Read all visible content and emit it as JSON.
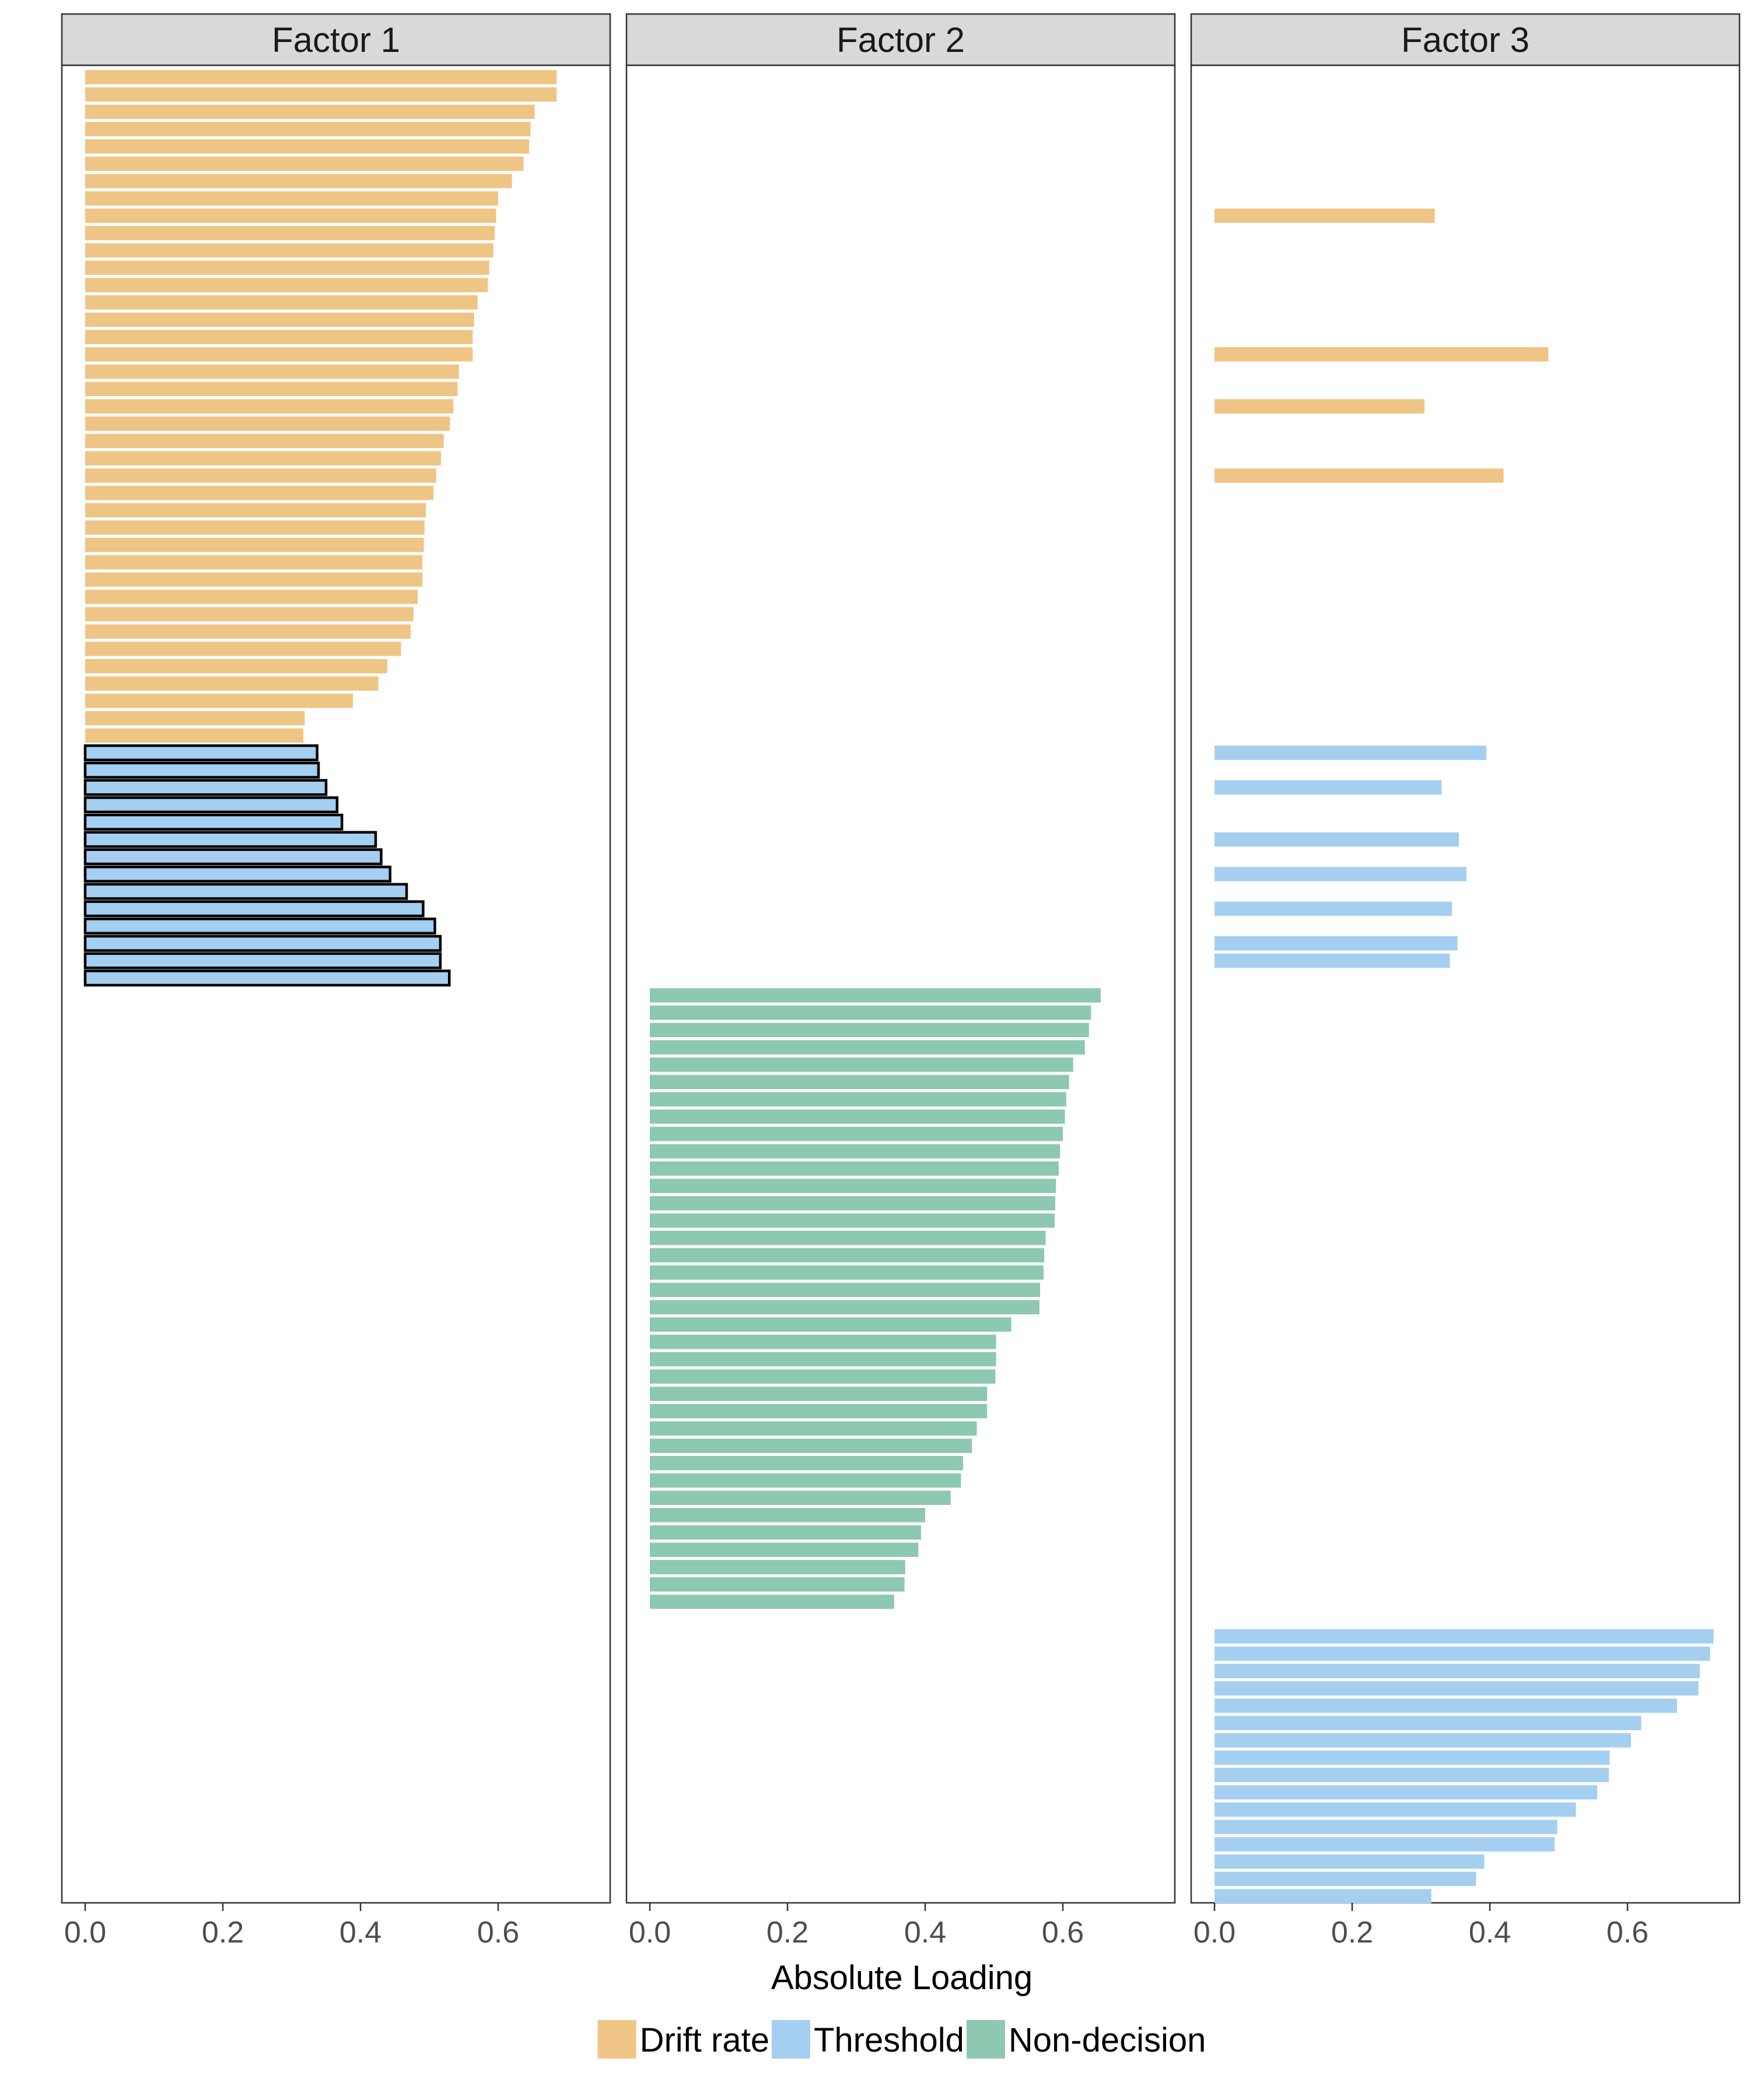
{
  "chart_data": {
    "type": "bar",
    "orientation": "horizontal",
    "xlabel": "Absolute Loading",
    "xlim": [
      0,
      0.74
    ],
    "x_ticks": [
      "0.0",
      "0.2",
      "0.4",
      "0.6"
    ],
    "x_tick_values": [
      0,
      0.2,
      0.4,
      0.6
    ],
    "grid": false,
    "legend_position": "bottom",
    "n_rows": 105,
    "legend": [
      {
        "label": "Drift rate",
        "color": "#EFC585"
      },
      {
        "label": "Threshold",
        "color": "#A5CFF0"
      },
      {
        "label": "Non-decision",
        "color": "#8DC8B0"
      }
    ],
    "colors": {
      "drift": "#EFC585",
      "threshold": "#A5CFF0",
      "nondecision": "#8DC8B0"
    },
    "facets": [
      {
        "title": "Factor 1",
        "bars": [
          {
            "row": 1,
            "value": 0.685,
            "type": "drift"
          },
          {
            "row": 2,
            "value": 0.685,
            "type": "drift"
          },
          {
            "row": 3,
            "value": 0.653,
            "type": "drift"
          },
          {
            "row": 4,
            "value": 0.647,
            "type": "drift"
          },
          {
            "row": 5,
            "value": 0.645,
            "type": "drift"
          },
          {
            "row": 6,
            "value": 0.637,
            "type": "drift"
          },
          {
            "row": 7,
            "value": 0.62,
            "type": "drift"
          },
          {
            "row": 8,
            "value": 0.6,
            "type": "drift"
          },
          {
            "row": 9,
            "value": 0.597,
            "type": "drift"
          },
          {
            "row": 10,
            "value": 0.595,
            "type": "drift"
          },
          {
            "row": 11,
            "value": 0.593,
            "type": "drift"
          },
          {
            "row": 12,
            "value": 0.587,
            "type": "drift"
          },
          {
            "row": 13,
            "value": 0.585,
            "type": "drift"
          },
          {
            "row": 14,
            "value": 0.57,
            "type": "drift"
          },
          {
            "row": 15,
            "value": 0.565,
            "type": "drift"
          },
          {
            "row": 16,
            "value": 0.563,
            "type": "drift"
          },
          {
            "row": 17,
            "value": 0.563,
            "type": "drift"
          },
          {
            "row": 18,
            "value": 0.543,
            "type": "drift"
          },
          {
            "row": 19,
            "value": 0.541,
            "type": "drift"
          },
          {
            "row": 20,
            "value": 0.535,
            "type": "drift"
          },
          {
            "row": 21,
            "value": 0.53,
            "type": "drift"
          },
          {
            "row": 22,
            "value": 0.521,
            "type": "drift"
          },
          {
            "row": 23,
            "value": 0.517,
            "type": "drift"
          },
          {
            "row": 24,
            "value": 0.51,
            "type": "drift"
          },
          {
            "row": 25,
            "value": 0.506,
            "type": "drift"
          },
          {
            "row": 26,
            "value": 0.495,
            "type": "drift"
          },
          {
            "row": 27,
            "value": 0.493,
            "type": "drift"
          },
          {
            "row": 28,
            "value": 0.492,
            "type": "drift"
          },
          {
            "row": 29,
            "value": 0.49,
            "type": "drift"
          },
          {
            "row": 30,
            "value": 0.49,
            "type": "drift"
          },
          {
            "row": 31,
            "value": 0.483,
            "type": "drift"
          },
          {
            "row": 32,
            "value": 0.477,
            "type": "drift"
          },
          {
            "row": 33,
            "value": 0.473,
            "type": "drift"
          },
          {
            "row": 34,
            "value": 0.459,
            "type": "drift"
          },
          {
            "row": 35,
            "value": 0.439,
            "type": "drift"
          },
          {
            "row": 36,
            "value": 0.426,
            "type": "drift"
          },
          {
            "row": 37,
            "value": 0.389,
            "type": "drift"
          },
          {
            "row": 38,
            "value": 0.319,
            "type": "drift"
          },
          {
            "row": 39,
            "value": 0.317,
            "type": "drift"
          },
          {
            "row": 40,
            "value": 0.337,
            "type": "threshold",
            "outlined": true
          },
          {
            "row": 41,
            "value": 0.339,
            "type": "threshold",
            "outlined": true
          },
          {
            "row": 42,
            "value": 0.35,
            "type": "threshold",
            "outlined": true
          },
          {
            "row": 43,
            "value": 0.366,
            "type": "threshold",
            "outlined": true
          },
          {
            "row": 44,
            "value": 0.373,
            "type": "threshold",
            "outlined": true
          },
          {
            "row": 45,
            "value": 0.422,
            "type": "threshold",
            "outlined": true
          },
          {
            "row": 46,
            "value": 0.43,
            "type": "threshold",
            "outlined": true
          },
          {
            "row": 47,
            "value": 0.443,
            "type": "threshold",
            "outlined": true
          },
          {
            "row": 48,
            "value": 0.467,
            "type": "threshold",
            "outlined": true
          },
          {
            "row": 49,
            "value": 0.491,
            "type": "threshold",
            "outlined": true
          },
          {
            "row": 50,
            "value": 0.508,
            "type": "threshold",
            "outlined": true
          },
          {
            "row": 51,
            "value": 0.516,
            "type": "threshold",
            "outlined": true
          },
          {
            "row": 52,
            "value": 0.516,
            "type": "threshold",
            "outlined": true
          },
          {
            "row": 53,
            "value": 0.529,
            "type": "threshold",
            "outlined": true
          }
        ]
      },
      {
        "title": "Factor 2",
        "bars": [
          {
            "row": 54,
            "value": 0.655,
            "type": "nondecision"
          },
          {
            "row": 55,
            "value": 0.641,
            "type": "nondecision"
          },
          {
            "row": 56,
            "value": 0.638,
            "type": "nondecision"
          },
          {
            "row": 57,
            "value": 0.632,
            "type": "nondecision"
          },
          {
            "row": 58,
            "value": 0.615,
            "type": "nondecision"
          },
          {
            "row": 59,
            "value": 0.609,
            "type": "nondecision"
          },
          {
            "row": 60,
            "value": 0.605,
            "type": "nondecision"
          },
          {
            "row": 61,
            "value": 0.603,
            "type": "nondecision"
          },
          {
            "row": 62,
            "value": 0.6,
            "type": "nondecision"
          },
          {
            "row": 63,
            "value": 0.596,
            "type": "nondecision"
          },
          {
            "row": 64,
            "value": 0.594,
            "type": "nondecision"
          },
          {
            "row": 65,
            "value": 0.59,
            "type": "nondecision"
          },
          {
            "row": 66,
            "value": 0.589,
            "type": "nondecision"
          },
          {
            "row": 67,
            "value": 0.588,
            "type": "nondecision"
          },
          {
            "row": 68,
            "value": 0.575,
            "type": "nondecision"
          },
          {
            "row": 69,
            "value": 0.573,
            "type": "nondecision"
          },
          {
            "row": 70,
            "value": 0.572,
            "type": "nondecision"
          },
          {
            "row": 71,
            "value": 0.567,
            "type": "nondecision"
          },
          {
            "row": 72,
            "value": 0.566,
            "type": "nondecision"
          },
          {
            "row": 73,
            "value": 0.525,
            "type": "nondecision"
          },
          {
            "row": 74,
            "value": 0.503,
            "type": "nondecision"
          },
          {
            "row": 75,
            "value": 0.503,
            "type": "nondecision"
          },
          {
            "row": 76,
            "value": 0.502,
            "type": "nondecision"
          },
          {
            "row": 77,
            "value": 0.49,
            "type": "nondecision"
          },
          {
            "row": 78,
            "value": 0.49,
            "type": "nondecision"
          },
          {
            "row": 79,
            "value": 0.475,
            "type": "nondecision"
          },
          {
            "row": 80,
            "value": 0.468,
            "type": "nondecision"
          },
          {
            "row": 81,
            "value": 0.455,
            "type": "nondecision"
          },
          {
            "row": 82,
            "value": 0.452,
            "type": "nondecision"
          },
          {
            "row": 83,
            "value": 0.437,
            "type": "nondecision"
          },
          {
            "row": 84,
            "value": 0.4,
            "type": "nondecision"
          },
          {
            "row": 85,
            "value": 0.394,
            "type": "nondecision"
          },
          {
            "row": 86,
            "value": 0.39,
            "type": "nondecision"
          },
          {
            "row": 87,
            "value": 0.371,
            "type": "nondecision"
          },
          {
            "row": 88,
            "value": 0.37,
            "type": "nondecision"
          },
          {
            "row": 89,
            "value": 0.355,
            "type": "nondecision"
          }
        ]
      },
      {
        "title": "Factor 3",
        "bars": [
          {
            "row": 9,
            "value": 0.32,
            "type": "drift"
          },
          {
            "row": 17,
            "value": 0.485,
            "type": "drift"
          },
          {
            "row": 20,
            "value": 0.305,
            "type": "drift"
          },
          {
            "row": 24,
            "value": 0.42,
            "type": "drift"
          },
          {
            "row": 40,
            "value": 0.395,
            "type": "threshold"
          },
          {
            "row": 42,
            "value": 0.33,
            "type": "threshold"
          },
          {
            "row": 45,
            "value": 0.355,
            "type": "threshold"
          },
          {
            "row": 47,
            "value": 0.366,
            "type": "threshold"
          },
          {
            "row": 49,
            "value": 0.345,
            "type": "threshold"
          },
          {
            "row": 51,
            "value": 0.353,
            "type": "threshold"
          },
          {
            "row": 52,
            "value": 0.342,
            "type": "threshold"
          },
          {
            "row": 91,
            "value": 0.725,
            "type": "threshold"
          },
          {
            "row": 92,
            "value": 0.72,
            "type": "threshold"
          },
          {
            "row": 93,
            "value": 0.705,
            "type": "threshold"
          },
          {
            "row": 94,
            "value": 0.703,
            "type": "threshold"
          },
          {
            "row": 95,
            "value": 0.672,
            "type": "threshold"
          },
          {
            "row": 96,
            "value": 0.62,
            "type": "threshold"
          },
          {
            "row": 97,
            "value": 0.605,
            "type": "threshold"
          },
          {
            "row": 98,
            "value": 0.574,
            "type": "threshold"
          },
          {
            "row": 99,
            "value": 0.573,
            "type": "threshold"
          },
          {
            "row": 100,
            "value": 0.556,
            "type": "threshold"
          },
          {
            "row": 101,
            "value": 0.525,
            "type": "threshold"
          },
          {
            "row": 102,
            "value": 0.498,
            "type": "threshold"
          },
          {
            "row": 103,
            "value": 0.494,
            "type": "threshold"
          },
          {
            "row": 104,
            "value": 0.392,
            "type": "threshold"
          },
          {
            "row": 105,
            "value": 0.38,
            "type": "threshold"
          },
          {
            "row": 106,
            "value": 0.315,
            "type": "threshold"
          }
        ]
      }
    ]
  }
}
